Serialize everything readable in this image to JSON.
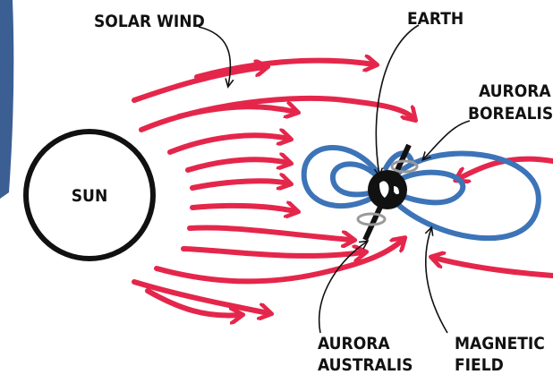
{
  "labels": {
    "solar_wind": "SOLAR WIND",
    "earth": "EARTH",
    "sun": "SUN",
    "aurora_borealis": [
      "AURORA",
      "BOREALIS"
    ],
    "aurora_australis": [
      "AURORA",
      "AUSTRALIS"
    ],
    "magnetic_field": [
      "MAGNETIC",
      "FIELD"
    ]
  }
}
